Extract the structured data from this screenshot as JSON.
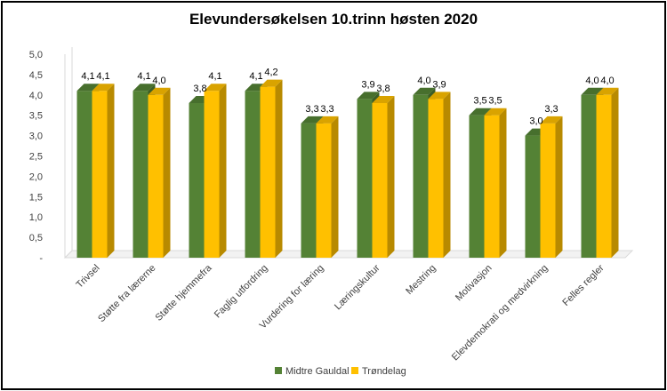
{
  "chart_data": {
    "type": "bar",
    "title": "Elevundersøkelsen 10.trinn høsten 2020",
    "categories": [
      "Trivsel",
      "Støtte fra lærerne",
      "Støtte hjemmefra",
      "Faglig utfordring",
      "Vurdering for læring",
      "Læringskultur",
      "Mestring",
      "Motivasjon",
      "Elevdemokrati og medvirkning",
      "Felles regler"
    ],
    "series": [
      {
        "name": "Midtre Gauldal",
        "color": "#548235",
        "values": [
          4.1,
          4.1,
          3.8,
          4.1,
          3.3,
          3.9,
          4.0,
          3.5,
          3.0,
          4.0
        ],
        "labels": [
          "4,1",
          "4,1",
          "3,8",
          "4,1",
          "3,3",
          "3,9",
          "4,0",
          "3,5",
          "3,0",
          "4,0"
        ]
      },
      {
        "name": "Trøndelag",
        "color": "#FFC000",
        "values": [
          4.1,
          4.0,
          4.1,
          4.2,
          3.3,
          3.8,
          3.9,
          3.5,
          3.3,
          4.0
        ],
        "labels": [
          "4,1",
          "4,0",
          "4,1",
          "4,2",
          "3,3",
          "3,8",
          "3,9",
          "3,5",
          "3,3",
          "4,0"
        ]
      }
    ],
    "ylim": [
      0,
      5
    ],
    "yticks": [
      0,
      0.5,
      1.0,
      1.5,
      2.0,
      2.5,
      3.0,
      3.5,
      4.0,
      4.5,
      5.0
    ],
    "ytick_labels": [
      "-",
      "0,5",
      "1,0",
      "1,5",
      "2,0",
      "2,5",
      "3,0",
      "3,5",
      "4,0",
      "4,5",
      "5,0"
    ],
    "xlabel": "",
    "ylabel": "",
    "legend_position": "bottom",
    "grid": false,
    "style": "3d-clustered-column"
  }
}
